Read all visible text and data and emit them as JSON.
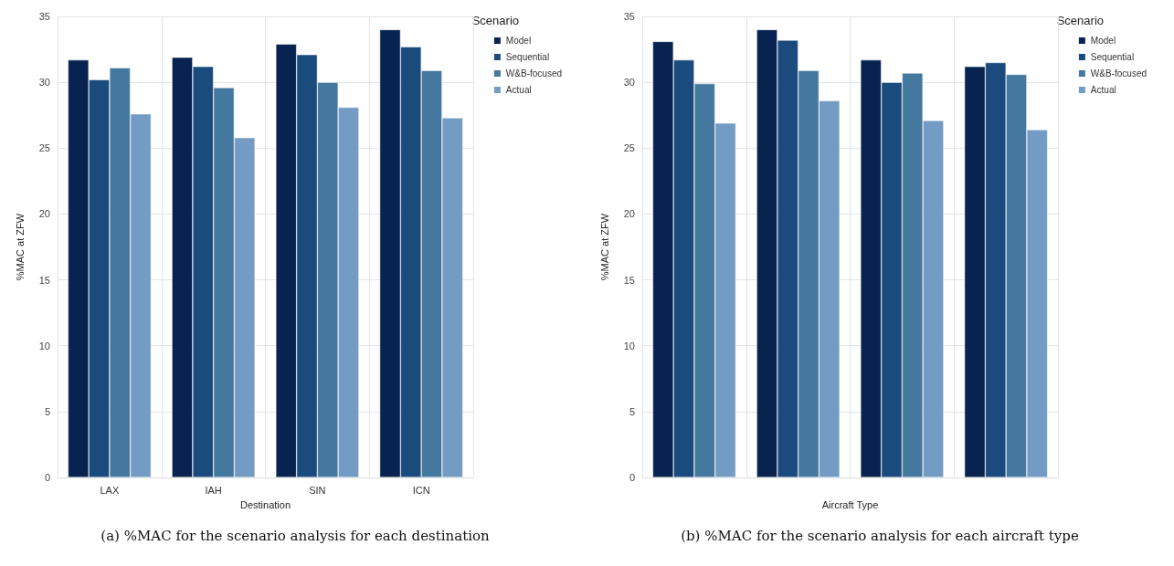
{
  "chart_data": [
    {
      "type": "bar",
      "xlabel": "Destination",
      "ylabel": "%MAC at ZFW",
      "legend_title": "Scenario",
      "legend": "top right",
      "grid": true,
      "categories": [
        "LAX",
        "IAH",
        "SIN",
        "ICN"
      ],
      "series": [
        {
          "name": "Model",
          "color": "#08234f",
          "values": [
            31.7,
            31.9,
            32.9,
            34.0
          ]
        },
        {
          "name": "Sequential",
          "color": "#1b4a7c",
          "values": [
            30.2,
            31.2,
            32.1,
            32.7
          ]
        },
        {
          "name": "W&B-focused",
          "color": "#45789f",
          "values": [
            31.1,
            29.6,
            30.0,
            30.9
          ]
        },
        {
          "name": "Actual",
          "color": "#739bc3",
          "values": [
            27.6,
            25.8,
            28.1,
            27.3
          ]
        }
      ],
      "ylim": [
        0,
        35
      ],
      "yticks": [
        0,
        5,
        10,
        15,
        20,
        25,
        30,
        35
      ],
      "annotations": [
        "(a) %MAC for the scenario analysis for each destination"
      ]
    },
    {
      "type": "bar",
      "xlabel": "Aircraft Type",
      "ylabel": "%MAC at ZFW",
      "legend_title": "Scenario",
      "legend": "top right",
      "grid": true,
      "categories": [
        null,
        null,
        null,
        null
      ],
      "series": [
        {
          "name": "Model",
          "color": "#08234f",
          "values": [
            33.1,
            34.0,
            31.7,
            31.2
          ]
        },
        {
          "name": "Sequential",
          "color": "#1b4a7c",
          "values": [
            31.7,
            33.2,
            30.0,
            31.5
          ]
        },
        {
          "name": "W&B-focused",
          "color": "#45789f",
          "values": [
            29.9,
            30.9,
            30.7,
            30.6
          ]
        },
        {
          "name": "Actual",
          "color": "#739bc3",
          "values": [
            26.9,
            28.6,
            27.1,
            26.4
          ]
        }
      ],
      "ylim": [
        0,
        35
      ],
      "yticks": [
        0,
        5,
        10,
        15,
        20,
        25,
        30,
        35
      ],
      "annotations": [
        "(b) %MAC for the scenario analysis for each aircraft type"
      ]
    }
  ]
}
